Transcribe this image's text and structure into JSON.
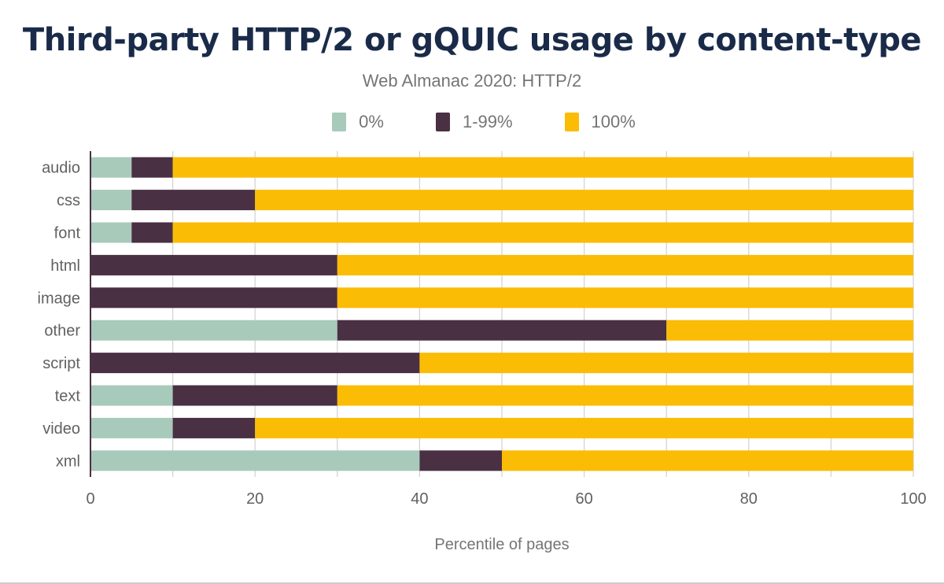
{
  "chart_data": {
    "type": "bar",
    "orientation": "horizontal",
    "stacked": true,
    "title": "Third-party HTTP/2 or gQUIC usage by content-type",
    "subtitle": "Web Almanac 2020: HTTP/2",
    "xlabel": "Percentile of pages",
    "ylabel": "",
    "xlim": [
      0,
      100
    ],
    "xticks": [
      "0",
      "20",
      "40",
      "60",
      "80",
      "100"
    ],
    "grid": true,
    "legend_position": "top",
    "categories": [
      "audio",
      "css",
      "font",
      "html",
      "image",
      "other",
      "script",
      "text",
      "video",
      "xml"
    ],
    "series": [
      {
        "name": "0%",
        "color": "#a8cabb",
        "values": [
          5,
          5,
          5,
          0,
          0,
          30,
          0,
          10,
          10,
          40
        ]
      },
      {
        "name": "1-99%",
        "color": "#4a3043",
        "values": [
          5,
          15,
          5,
          30,
          30,
          40,
          40,
          20,
          10,
          10
        ]
      },
      {
        "name": "100%",
        "color": "#fbbc05",
        "values": [
          90,
          80,
          90,
          70,
          70,
          30,
          60,
          70,
          80,
          50
        ]
      }
    ]
  }
}
